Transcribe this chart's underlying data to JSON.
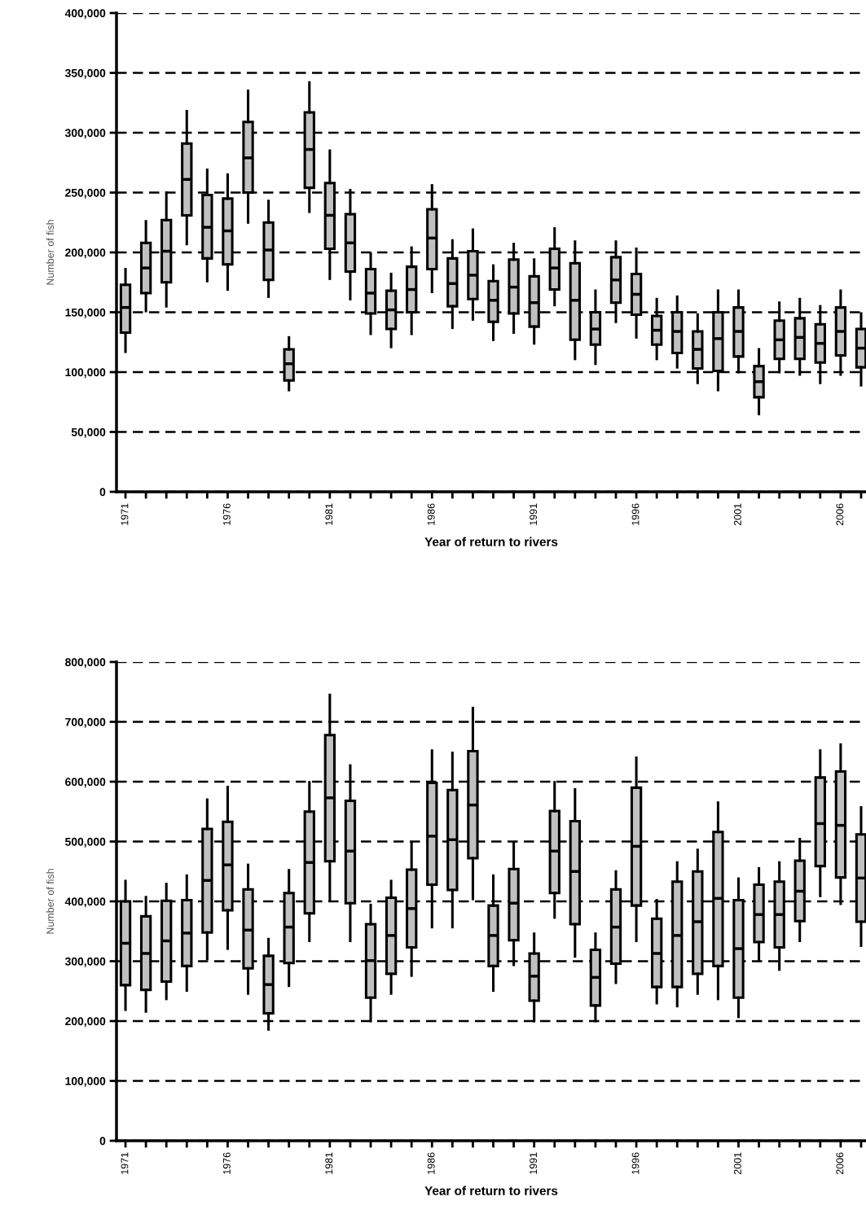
{
  "chart_data": [
    {
      "type": "box",
      "xlabel": "Year of return to rivers",
      "ylabel": "Number of fish",
      "color": "#c0c0c0",
      "grid": "y",
      "categories": [
        "1971",
        null,
        null,
        null,
        null,
        "1976",
        null,
        null,
        null,
        null,
        "1981",
        null,
        null,
        null,
        null,
        "1986",
        null,
        null,
        null,
        null,
        "1991",
        null,
        null,
        null,
        null,
        "1996",
        null,
        null,
        null,
        null,
        "2001",
        null,
        null,
        null,
        null,
        "2006",
        null
      ],
      "ylim": [
        0,
        400000
      ],
      "yticks": [
        {
          "value": 0,
          "label": "0"
        },
        {
          "value": 50000,
          "label": "50,000"
        },
        {
          "value": 100000,
          "label": "100,000"
        },
        {
          "value": 150000,
          "label": "150,000"
        },
        {
          "value": 200000,
          "label": "200,000"
        },
        {
          "value": 250000,
          "label": "250,000"
        },
        {
          "value": 300000,
          "label": "300,000"
        },
        {
          "value": 350000,
          "label": "350,000"
        },
        {
          "value": 400000,
          "label": "400,000"
        }
      ],
      "boxes": [
        {
          "low": 117000,
          "q1": 133000,
          "median": 154000,
          "q3": 173000,
          "high": 186000
        },
        {
          "low": 151000,
          "q1": 166000,
          "median": 187000,
          "q3": 208000,
          "high": 226000
        },
        {
          "low": 155000,
          "q1": 175000,
          "median": 201000,
          "q3": 227000,
          "high": 250000
        },
        {
          "low": 207000,
          "q1": 231000,
          "median": 261000,
          "q3": 291000,
          "high": 318000
        },
        {
          "low": 176000,
          "q1": 195000,
          "median": 221000,
          "q3": 248000,
          "high": 269000
        },
        {
          "low": 169000,
          "q1": 190000,
          "median": 218000,
          "q3": 245000,
          "high": 265000
        },
        {
          "low": 225000,
          "q1": 250000,
          "median": 279000,
          "q3": 309000,
          "high": 335000
        },
        {
          "low": 163000,
          "q1": 177000,
          "median": 202000,
          "q3": 225000,
          "high": 243000
        },
        {
          "low": 85000,
          "q1": 93000,
          "median": 107000,
          "q3": 119000,
          "high": 129000
        },
        {
          "low": 234000,
          "q1": 254000,
          "median": 286000,
          "q3": 317000,
          "high": 342000
        },
        {
          "low": 178000,
          "q1": 203000,
          "median": 231000,
          "q3": 258000,
          "high": 285000
        },
        {
          "low": 161000,
          "q1": 184000,
          "median": 208000,
          "q3": 232000,
          "high": 252000
        },
        {
          "low": 132000,
          "q1": 149000,
          "median": 166000,
          "q3": 186000,
          "high": 199000
        },
        {
          "low": 121000,
          "q1": 136000,
          "median": 152000,
          "q3": 168000,
          "high": 182000
        },
        {
          "low": 132000,
          "q1": 150000,
          "median": 169000,
          "q3": 188000,
          "high": 204000
        },
        {
          "low": 167000,
          "q1": 186000,
          "median": 212000,
          "q3": 236000,
          "high": 256000
        },
        {
          "low": 137000,
          "q1": 155000,
          "median": 174000,
          "q3": 195000,
          "high": 210000
        },
        {
          "low": 144000,
          "q1": 161000,
          "median": 181000,
          "q3": 201000,
          "high": 219000
        },
        {
          "low": 127000,
          "q1": 142000,
          "median": 160000,
          "q3": 176000,
          "high": 189000
        },
        {
          "low": 133000,
          "q1": 149000,
          "median": 171000,
          "q3": 194000,
          "high": 207000
        },
        {
          "low": 124000,
          "q1": 138000,
          "median": 158000,
          "q3": 180000,
          "high": 194000
        },
        {
          "low": 156000,
          "q1": 169000,
          "median": 187000,
          "q3": 203000,
          "high": 220000
        },
        {
          "low": 111000,
          "q1": 127000,
          "median": 160000,
          "q3": 191000,
          "high": 209000
        },
        {
          "low": 107000,
          "q1": 123000,
          "median": 136000,
          "q3": 150000,
          "high": 168000
        },
        {
          "low": 142000,
          "q1": 158000,
          "median": 177000,
          "q3": 196000,
          "high": 209000
        },
        {
          "low": 129000,
          "q1": 148000,
          "median": 165000,
          "q3": 182000,
          "high": 203000
        },
        {
          "low": 111000,
          "q1": 123000,
          "median": 135000,
          "q3": 147000,
          "high": 161000
        },
        {
          "low": 104000,
          "q1": 116000,
          "median": 134000,
          "q3": 150000,
          "high": 163000
        },
        {
          "low": 91000,
          "q1": 103000,
          "median": 119000,
          "q3": 134000,
          "high": 148000
        },
        {
          "low": 85000,
          "q1": 101000,
          "median": 128000,
          "q3": 150000,
          "high": 168000
        },
        {
          "low": 100000,
          "q1": 113000,
          "median": 134000,
          "q3": 154000,
          "high": 168000
        },
        {
          "low": 65000,
          "q1": 79000,
          "median": 92000,
          "q3": 105000,
          "high": 119000
        },
        {
          "low": 100000,
          "q1": 111000,
          "median": 127000,
          "q3": 143000,
          "high": 158000
        },
        {
          "low": 98000,
          "q1": 111000,
          "median": 129000,
          "q3": 145000,
          "high": 161000
        },
        {
          "low": 91000,
          "q1": 108000,
          "median": 124000,
          "q3": 140000,
          "high": 155000
        },
        {
          "low": 98000,
          "q1": 114000,
          "median": 134000,
          "q3": 154000,
          "high": 168000
        },
        {
          "low": 89000,
          "q1": 104000,
          "median": 120000,
          "q3": 136000,
          "high": 149000
        }
      ]
    },
    {
      "type": "box",
      "xlabel": "Year of return to rivers",
      "ylabel": "Number of fish",
      "color": "#c0c0c0",
      "grid": "y",
      "categories": [
        "1971",
        null,
        null,
        null,
        null,
        "1976",
        null,
        null,
        null,
        null,
        "1981",
        null,
        null,
        null,
        null,
        "1986",
        null,
        null,
        null,
        null,
        "1991",
        null,
        null,
        null,
        null,
        "1996",
        null,
        null,
        null,
        null,
        "2001",
        null,
        null,
        null,
        null,
        "2006",
        null
      ],
      "ylim": [
        0,
        800000
      ],
      "yticks": [
        {
          "value": 0,
          "label": "0"
        },
        {
          "value": 100000,
          "label": "100,000"
        },
        {
          "value": 200000,
          "label": "200,000"
        },
        {
          "value": 300000,
          "label": "300,000"
        },
        {
          "value": 400000,
          "label": "400,000"
        },
        {
          "value": 500000,
          "label": "500,000"
        },
        {
          "value": 600000,
          "label": "600,000"
        },
        {
          "value": 700000,
          "label": "700,000"
        },
        {
          "value": 800000,
          "label": "800,000"
        }
      ],
      "boxes": [
        {
          "low": 219000,
          "q1": 260000,
          "median": 330000,
          "q3": 400000,
          "high": 434000
        },
        {
          "low": 216000,
          "q1": 252000,
          "median": 313000,
          "q3": 375000,
          "high": 407000
        },
        {
          "low": 237000,
          "q1": 266000,
          "median": 334000,
          "q3": 401000,
          "high": 429000
        },
        {
          "low": 251000,
          "q1": 292000,
          "median": 347000,
          "q3": 402000,
          "high": 443000
        },
        {
          "low": 304000,
          "q1": 348000,
          "median": 435000,
          "q3": 521000,
          "high": 570000
        },
        {
          "low": 321000,
          "q1": 385000,
          "median": 461000,
          "q3": 533000,
          "high": 591000
        },
        {
          "low": 246000,
          "q1": 288000,
          "median": 352000,
          "q3": 420000,
          "high": 461000
        },
        {
          "low": 186000,
          "q1": 213000,
          "median": 261000,
          "q3": 309000,
          "high": 337000
        },
        {
          "low": 259000,
          "q1": 297000,
          "median": 357000,
          "q3": 414000,
          "high": 452000
        },
        {
          "low": 334000,
          "q1": 380000,
          "median": 465000,
          "q3": 550000,
          "high": 599000
        },
        {
          "low": 402000,
          "q1": 467000,
          "median": 573000,
          "q3": 678000,
          "high": 745000
        },
        {
          "low": 334000,
          "q1": 397000,
          "median": 484000,
          "q3": 568000,
          "high": 627000
        },
        {
          "low": 200000,
          "q1": 239000,
          "median": 301000,
          "q3": 362000,
          "high": 394000
        },
        {
          "low": 246000,
          "q1": 279000,
          "median": 343000,
          "q3": 406000,
          "high": 434000
        },
        {
          "low": 276000,
          "q1": 323000,
          "median": 388000,
          "q3": 453000,
          "high": 497000
        },
        {
          "low": 357000,
          "q1": 428000,
          "median": 509000,
          "q3": 598000,
          "high": 652000
        },
        {
          "low": 357000,
          "q1": 419000,
          "median": 503000,
          "q3": 586000,
          "high": 648000
        },
        {
          "low": 404000,
          "q1": 472000,
          "median": 561000,
          "q3": 651000,
          "high": 723000
        },
        {
          "low": 251000,
          "q1": 292000,
          "median": 343000,
          "q3": 393000,
          "high": 443000
        },
        {
          "low": 294000,
          "q1": 335000,
          "median": 397000,
          "q3": 454000,
          "high": 498000
        },
        {
          "low": 200000,
          "q1": 234000,
          "median": 275000,
          "q3": 313000,
          "high": 346000
        },
        {
          "low": 373000,
          "q1": 414000,
          "median": 484000,
          "q3": 551000,
          "high": 599000
        },
        {
          "low": 308000,
          "q1": 362000,
          "median": 450000,
          "q3": 534000,
          "high": 587000
        },
        {
          "low": 200000,
          "q1": 226000,
          "median": 273000,
          "q3": 319000,
          "high": 346000
        },
        {
          "low": 264000,
          "q1": 296000,
          "median": 357000,
          "q3": 420000,
          "high": 450000
        },
        {
          "low": 334000,
          "q1": 393000,
          "median": 492000,
          "q3": 590000,
          "high": 640000
        },
        {
          "low": 230000,
          "q1": 257000,
          "median": 313000,
          "q3": 371000,
          "high": 402000
        },
        {
          "low": 225000,
          "q1": 257000,
          "median": 343000,
          "q3": 433000,
          "high": 465000
        },
        {
          "low": 246000,
          "q1": 279000,
          "median": 366000,
          "q3": 450000,
          "high": 486000
        },
        {
          "low": 237000,
          "q1": 292000,
          "median": 405000,
          "q3": 516000,
          "high": 565000
        },
        {
          "low": 207000,
          "q1": 239000,
          "median": 321000,
          "q3": 402000,
          "high": 438000
        },
        {
          "low": 301000,
          "q1": 332000,
          "median": 378000,
          "q3": 428000,
          "high": 455000
        },
        {
          "low": 286000,
          "q1": 323000,
          "median": 378000,
          "q3": 433000,
          "high": 465000
        },
        {
          "low": 334000,
          "q1": 367000,
          "median": 417000,
          "q3": 468000,
          "high": 504000
        },
        {
          "low": 409000,
          "q1": 459000,
          "median": 530000,
          "q3": 607000,
          "high": 652000
        },
        {
          "low": 396000,
          "q1": 440000,
          "median": 527000,
          "q3": 617000,
          "high": 662000
        },
        {
          "low": 326000,
          "q1": 366000,
          "median": 439000,
          "q3": 512000,
          "high": 557000
        }
      ]
    }
  ]
}
